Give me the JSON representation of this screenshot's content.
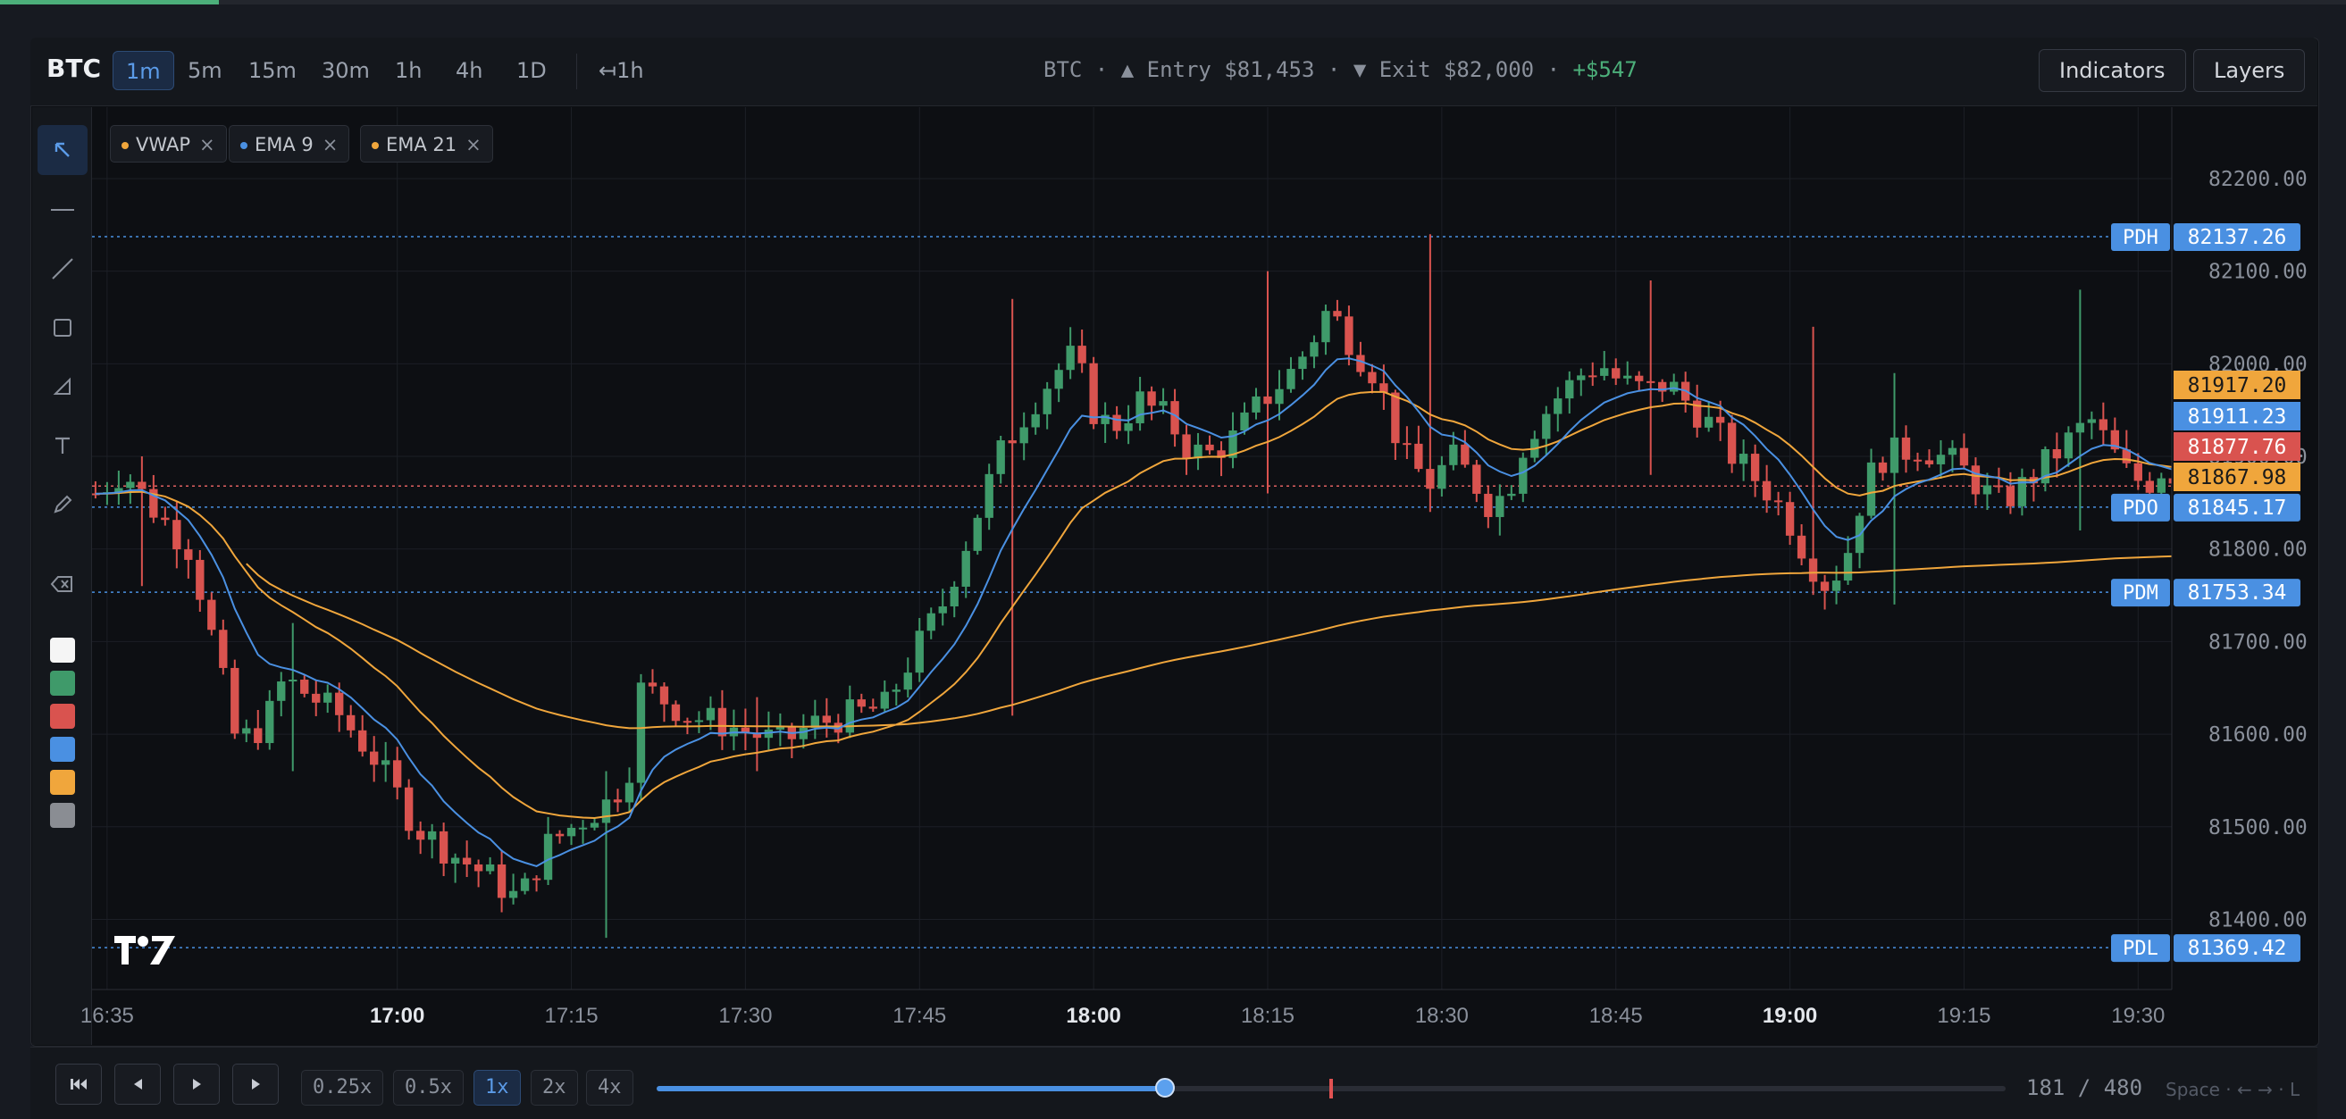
{
  "toolbar": {
    "symbol": "BTC",
    "timeframes": [
      "1m",
      "5m",
      "15m",
      "30m",
      "1h",
      "4h",
      "1D"
    ],
    "active_timeframe": "1m",
    "measure_label": "↤1h",
    "indicators_label": "Indicators",
    "layers_label": "Layers"
  },
  "trade": {
    "symbol": "BTC",
    "entry": "▲ Entry $81,453",
    "exit": "▼ Exit $82,000",
    "pnl": "+$547"
  },
  "indicators": [
    {
      "name": "VWAP",
      "color": "#f0a63c",
      "remove": "×"
    },
    {
      "name": "EMA 9",
      "color": "#4a90e2",
      "remove": "×"
    },
    {
      "name": "EMA 21",
      "color": "#f0a63c",
      "remove": "×"
    }
  ],
  "tools": [
    "cursor-icon",
    "horizontal-line-icon",
    "trend-line-icon",
    "rectangle-icon",
    "triangle-icon",
    "text-icon",
    "pencil-icon",
    "eraser-icon"
  ],
  "swatches": [
    "#f5f5f5",
    "#3f9a6a",
    "#d9534f",
    "#4a90e2",
    "#f0a63c",
    "#8a8d93"
  ],
  "chart_data": {
    "type": "candlestick",
    "price_range": [
      81340,
      82300
    ],
    "price_ticks": [
      "82200.00",
      "82100.00",
      "82000.00",
      "81900.00",
      "81800.00",
      "81700.00",
      "81600.00",
      "81500.00",
      "81400.00"
    ],
    "price_tick_values": [
      82200,
      82100,
      82000,
      81900,
      81800,
      81700,
      81600,
      81500,
      81400
    ],
    "time_range": [
      "16:34",
      "19:32"
    ],
    "time_ticks": [
      {
        "label": "16:35",
        "t": 1
      },
      {
        "label": "17:00",
        "t": 26,
        "bold": true
      },
      {
        "label": "17:15",
        "t": 41
      },
      {
        "label": "17:30",
        "t": 56
      },
      {
        "label": "17:45",
        "t": 71
      },
      {
        "label": "18:00",
        "t": 86,
        "bold": true
      },
      {
        "label": "18:15",
        "t": 101
      },
      {
        "label": "18:30",
        "t": 116
      },
      {
        "label": "18:45",
        "t": 131
      },
      {
        "label": "19:00",
        "t": 146,
        "bold": true
      },
      {
        "label": "19:15",
        "t": 161
      },
      {
        "label": "19:30",
        "t": 176
      }
    ],
    "levels": [
      {
        "tag": "PDH",
        "price": 82137.26,
        "label": "82137.26"
      },
      {
        "tag": "PDO",
        "price": 81845.17,
        "label": "81845.17"
      },
      {
        "tag": "PDM",
        "price": 81753.34,
        "label": "81753.34"
      },
      {
        "tag": "PDL",
        "price": 81369.42,
        "label": "81369.42"
      }
    ],
    "price_tags": [
      {
        "label": "81917.20",
        "price": 81917.2,
        "color": "#f0a63c",
        "series": "EMA 21"
      },
      {
        "label": "81911.23",
        "price": 81911.23,
        "color": "#4a90e2",
        "series": "EMA 9"
      },
      {
        "label": "81877.76",
        "price": 81877.76,
        "color": "#d9534f",
        "series": "last"
      },
      {
        "label": "81867.98",
        "price": 81867.98,
        "color": "#f0a63c",
        "series": "VWAP"
      }
    ],
    "candle_count": 180,
    "candles": [],
    "ema9": [],
    "ema21": [],
    "vwap": []
  },
  "playback": {
    "speeds": [
      "0.25x",
      "0.5x",
      "1x",
      "2x",
      "4x"
    ],
    "active_speed": "1x",
    "progress": 0.377,
    "current": 181,
    "total": 480,
    "counter": "181 / 480",
    "keys_hint": "Space · ← → · L"
  }
}
